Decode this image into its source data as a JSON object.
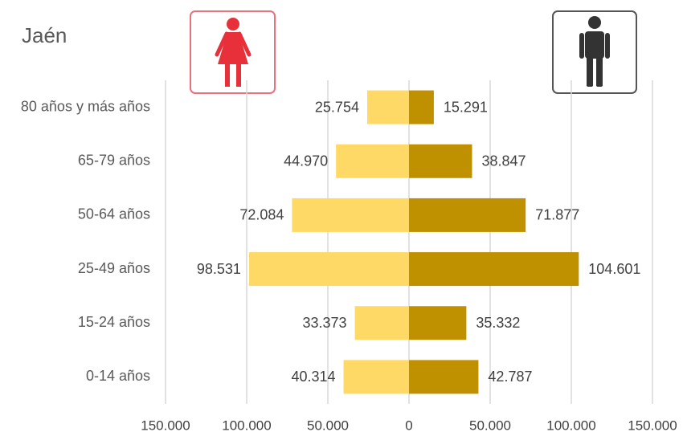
{
  "chart_data": {
    "type": "pyramid",
    "title": "Jaén",
    "categories": [
      "80 años y más años",
      "65-79 años",
      "50-64 años",
      "25-49 años",
      "15-24 años",
      "0-14 años"
    ],
    "series": [
      {
        "side": "left",
        "color": "#ffd966",
        "values": [
          25754,
          44970,
          72084,
          98531,
          33373,
          40314
        ],
        "value_labels": [
          "25.754",
          "44.970",
          "72.084",
          "98.531",
          "33.373",
          "40.314"
        ]
      },
      {
        "side": "right",
        "color": "#bf9000",
        "values": [
          15291,
          38847,
          71877,
          104601,
          35332,
          42787
        ],
        "value_labels": [
          "15.291",
          "38.847",
          "71.877",
          "104.601",
          "35.332",
          "42.787"
        ]
      }
    ],
    "xlim": [
      -150000,
      150000
    ],
    "xticks": [
      {
        "value": -150000,
        "label": "150.000"
      },
      {
        "value": -100000,
        "label": "100.000"
      },
      {
        "value": -50000,
        "label": "50.000"
      },
      0,
      {
        "value": 50000,
        "label": "50.000"
      },
      {
        "value": 100000,
        "label": "100.000"
      },
      {
        "value": 150000,
        "label": "150.000"
      }
    ],
    "grid": true
  }
}
